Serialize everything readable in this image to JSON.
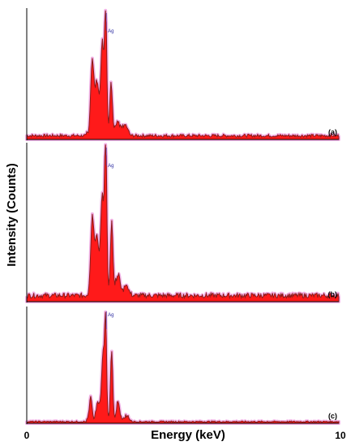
{
  "chart_data": {
    "type": "area",
    "ylabel": "Intensity (Counts)",
    "xlabel": "Energy (keV)",
    "xlim": [
      0,
      10
    ],
    "x_ticks": [
      "0",
      "10"
    ],
    "colors": {
      "fill": "#ff1a1a",
      "edge": "#8b1a1a",
      "halo": "#f3b3e6",
      "axis": "#000000",
      "annotation": "#2a2aa0"
    },
    "panels": [
      {
        "label": "(a)",
        "annotation": "Ag",
        "annotation_x": 2.55,
        "baseline": 0.03,
        "peaks": [
          {
            "x": 2.1,
            "h": 0.58,
            "w": 0.05
          },
          {
            "x": 2.25,
            "h": 0.42,
            "w": 0.06
          },
          {
            "x": 2.42,
            "h": 0.72,
            "w": 0.05
          },
          {
            "x": 2.53,
            "h": 1.0,
            "w": 0.035
          },
          {
            "x": 2.7,
            "h": 0.4,
            "w": 0.04
          },
          {
            "x": 2.9,
            "h": 0.1,
            "w": 0.08
          },
          {
            "x": 3.15,
            "h": 0.06,
            "w": 0.08
          }
        ]
      },
      {
        "label": "(b)",
        "annotation": "Ag",
        "annotation_x": 2.55,
        "baseline": 0.04,
        "peaks": [
          {
            "x": 2.1,
            "h": 0.5,
            "w": 0.05
          },
          {
            "x": 2.25,
            "h": 0.38,
            "w": 0.06
          },
          {
            "x": 2.42,
            "h": 0.62,
            "w": 0.05
          },
          {
            "x": 2.53,
            "h": 1.0,
            "w": 0.035
          },
          {
            "x": 2.72,
            "h": 0.45,
            "w": 0.04
          },
          {
            "x": 2.92,
            "h": 0.12,
            "w": 0.08
          },
          {
            "x": 3.2,
            "h": 0.05,
            "w": 0.08
          }
        ]
      },
      {
        "label": "(c)",
        "annotation": "Ag",
        "annotation_x": 2.55,
        "baseline": 0.015,
        "peaks": [
          {
            "x": 2.05,
            "h": 0.2,
            "w": 0.04
          },
          {
            "x": 2.28,
            "h": 0.16,
            "w": 0.06
          },
          {
            "x": 2.45,
            "h": 0.6,
            "w": 0.05
          },
          {
            "x": 2.53,
            "h": 0.78,
            "w": 0.03
          },
          {
            "x": 2.72,
            "h": 0.62,
            "w": 0.035
          },
          {
            "x": 2.92,
            "h": 0.16,
            "w": 0.05
          },
          {
            "x": 3.2,
            "h": 0.04,
            "w": 0.08
          }
        ]
      }
    ]
  }
}
